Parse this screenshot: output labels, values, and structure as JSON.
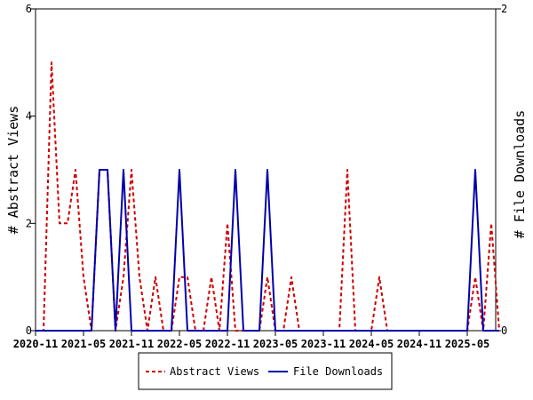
{
  "chart_data": {
    "type": "line",
    "x_unit": "month",
    "x_start": "2020-11",
    "x_end": "2025-09",
    "xlabel": "",
    "y_left_label": "# Abstract Views",
    "y_right_label": "# File Downloads",
    "y_left_lim": [
      0,
      6
    ],
    "y_right_lim": [
      0,
      2
    ],
    "y_left_ticks": [
      "0",
      "2",
      "4",
      "6"
    ],
    "y_right_ticks": [
      "0",
      "2"
    ],
    "x_ticks": [
      {
        "label": "2020-11",
        "month_index": 0
      },
      {
        "label": "2021-05",
        "month_index": 6
      },
      {
        "label": "2021-11",
        "month_index": 12
      },
      {
        "label": "2022-05",
        "month_index": 18
      },
      {
        "label": "2022-11",
        "month_index": 24
      },
      {
        "label": "2023-05",
        "month_index": 30
      },
      {
        "label": "2023-11",
        "month_index": 36
      },
      {
        "label": "2024-05",
        "month_index": 42
      },
      {
        "label": "2024-11",
        "month_index": 48
      },
      {
        "label": "2025-05",
        "month_index": 54
      }
    ],
    "grid": false,
    "legend_placement": "bottom-center",
    "series": [
      {
        "name": "Abstract Views",
        "axis": "left",
        "color": "#cc0000",
        "style": "dashed",
        "values": [
          0,
          0,
          5,
          2,
          2,
          3,
          1,
          0,
          3,
          3,
          0,
          1,
          3,
          1,
          0,
          1,
          0,
          0,
          1,
          1,
          0,
          0,
          1,
          0,
          2,
          0,
          0,
          0,
          0,
          1,
          0,
          0,
          1,
          0,
          0,
          0,
          0,
          0,
          0,
          3,
          0,
          0,
          0,
          1,
          0,
          0,
          0,
          0,
          0,
          0,
          0,
          0,
          0,
          0,
          0,
          1,
          0,
          2,
          0
        ]
      },
      {
        "name": "File Downloads",
        "axis": "right",
        "color": "#0000aa",
        "style": "solid",
        "values": [
          0,
          0,
          0,
          0,
          0,
          0,
          0,
          0,
          1,
          1,
          0,
          1,
          0,
          0,
          0,
          0,
          0,
          0,
          1,
          0,
          0,
          0,
          0,
          0,
          0,
          1,
          0,
          0,
          0,
          1,
          0,
          0,
          0,
          0,
          0,
          0,
          0,
          0,
          0,
          0,
          0,
          0,
          0,
          0,
          0,
          0,
          0,
          0,
          0,
          0,
          0,
          0,
          0,
          0,
          0,
          1,
          0,
          0,
          0
        ]
      }
    ]
  }
}
